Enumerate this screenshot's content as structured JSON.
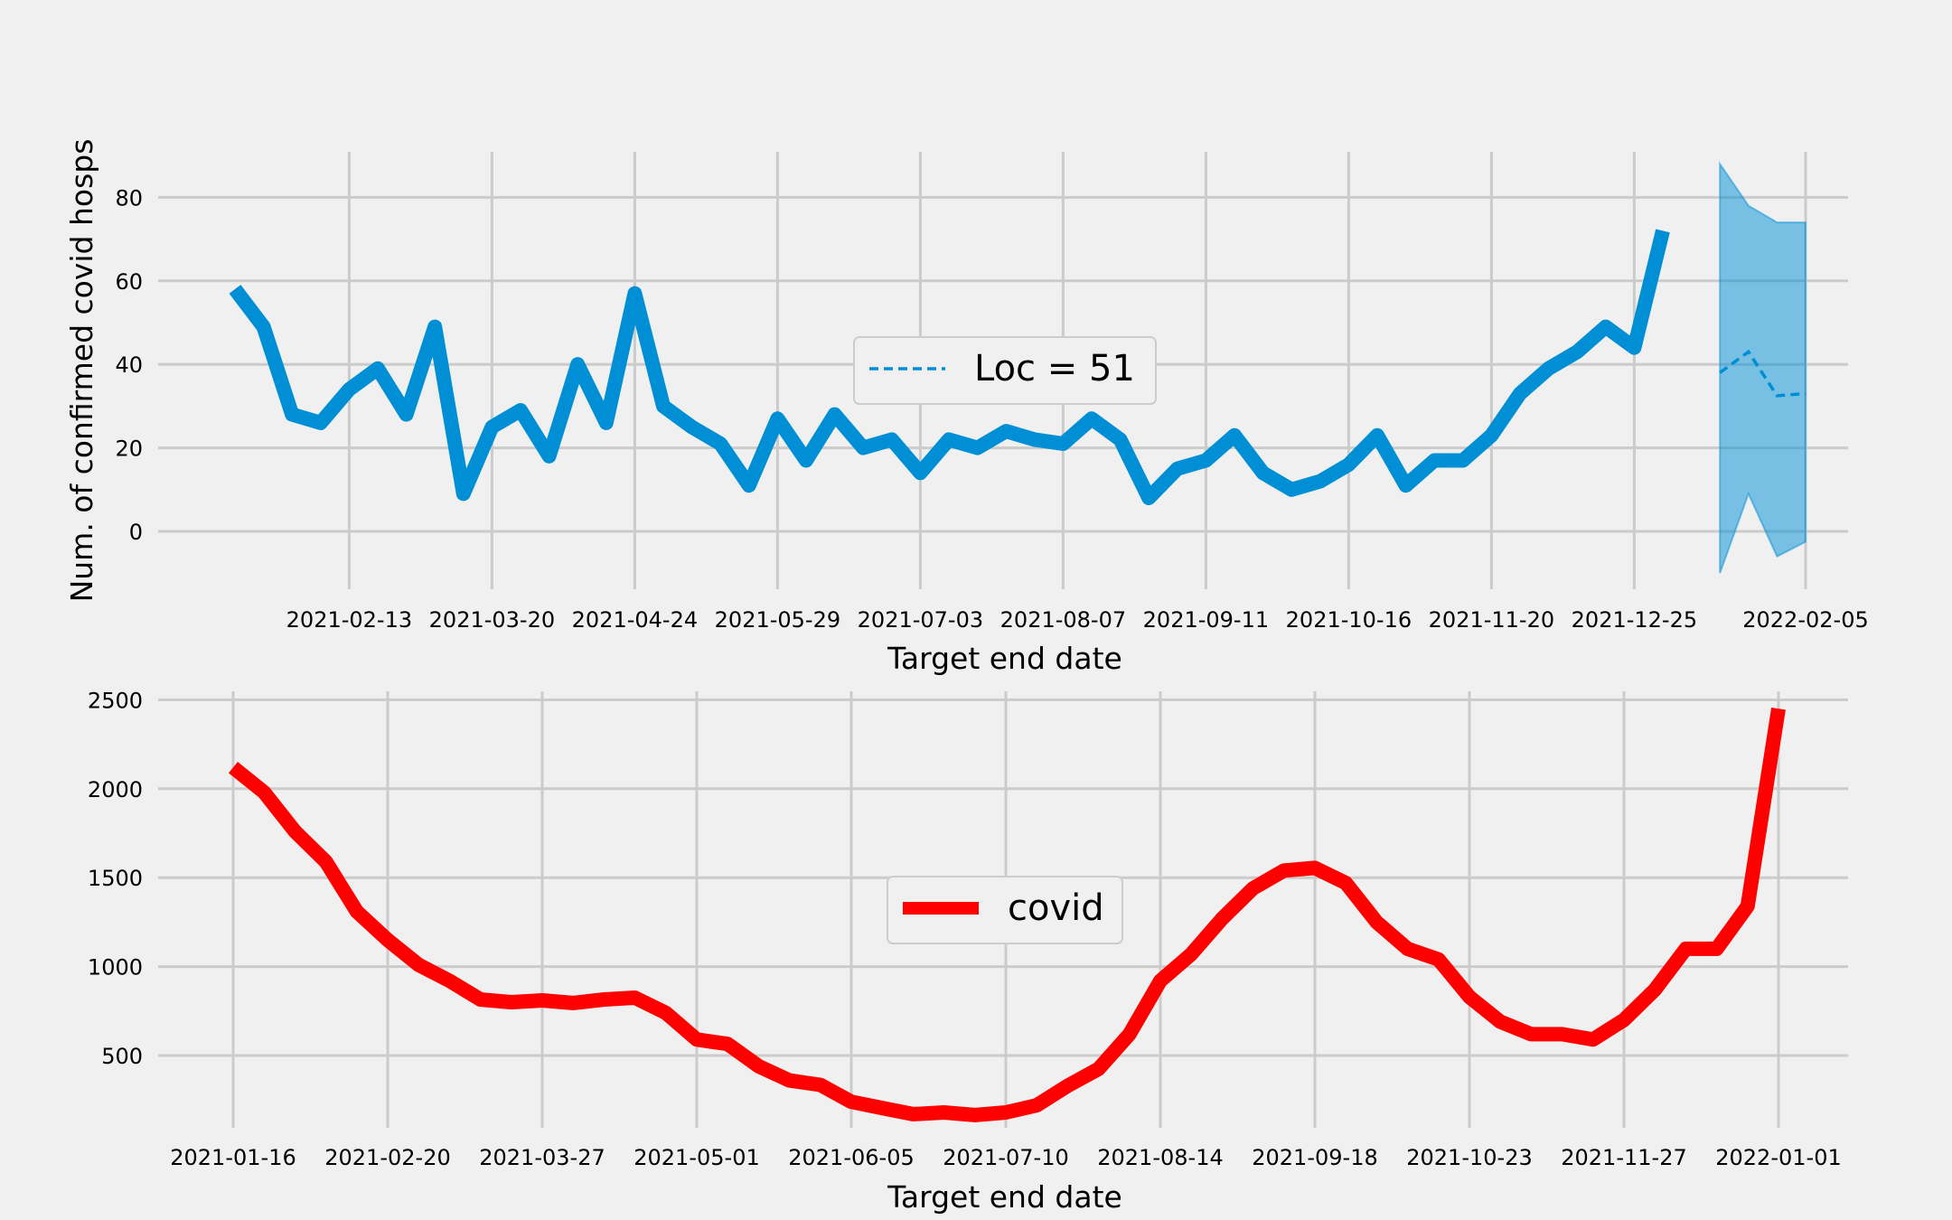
{
  "chart_data": [
    {
      "type": "line",
      "title": "",
      "xlabel": "Target end date",
      "ylabel": "Num. of confirmed covid hosps",
      "ylim": [
        -10,
        92
      ],
      "y_ticks": [
        0,
        20,
        40,
        60,
        80
      ],
      "x_ticks": [
        "2021-02-13",
        "2021-03-20",
        "2021-04-24",
        "2021-05-29",
        "2021-07-03",
        "2021-08-07",
        "2021-09-11",
        "2021-10-16",
        "2021-11-20",
        "2021-12-25",
        "2022-02-05"
      ],
      "grid": true,
      "legend_placement": "center",
      "colors": {
        "observed": "#008fd5",
        "forecast": "#008fd5",
        "band": "#008fd5"
      },
      "series": [
        {
          "name": "",
          "style": "solid",
          "x": [
            "2021-01-16",
            "2021-01-23",
            "2021-01-30",
            "2021-02-06",
            "2021-02-13",
            "2021-02-20",
            "2021-02-27",
            "2021-03-06",
            "2021-03-13",
            "2021-03-20",
            "2021-03-27",
            "2021-04-03",
            "2021-04-10",
            "2021-04-17",
            "2021-04-24",
            "2021-05-01",
            "2021-05-08",
            "2021-05-15",
            "2021-05-22",
            "2021-05-29",
            "2021-06-05",
            "2021-06-12",
            "2021-06-19",
            "2021-06-26",
            "2021-07-03",
            "2021-07-10",
            "2021-07-17",
            "2021-07-24",
            "2021-07-31",
            "2021-08-07",
            "2021-08-14",
            "2021-08-21",
            "2021-08-28",
            "2021-09-04",
            "2021-09-11",
            "2021-09-18",
            "2021-09-25",
            "2021-10-02",
            "2021-10-09",
            "2021-10-16",
            "2021-10-23",
            "2021-10-30",
            "2021-11-06",
            "2021-11-13",
            "2021-11-20",
            "2021-11-27",
            "2021-12-04",
            "2021-12-11",
            "2021-12-18",
            "2021-12-25",
            "2022-01-01"
          ],
          "values": [
            58,
            49,
            28,
            26,
            34,
            39,
            28,
            49,
            9,
            25,
            29,
            18,
            40,
            26,
            57,
            30,
            25,
            21,
            11,
            27,
            17,
            28,
            20,
            22,
            14,
            22,
            20,
            24,
            22,
            21,
            27,
            22,
            8,
            15,
            17,
            23,
            14,
            10,
            12,
            16,
            23,
            11,
            17,
            17,
            23,
            33,
            39,
            43,
            49,
            44,
            72
          ]
        },
        {
          "name": "Loc = 51",
          "style": "dashed",
          "x": [
            "2022-01-15",
            "2022-01-22",
            "2022-01-29",
            "2022-02-05"
          ],
          "values": [
            38,
            43,
            32.5,
            33
          ],
          "lower": [
            -10,
            9,
            -6,
            -2.5
          ],
          "upper": [
            88,
            78,
            74,
            74
          ]
        }
      ]
    },
    {
      "type": "line",
      "title": "",
      "xlabel": "Target end date",
      "ylabel": "",
      "ylim": [
        40,
        2550
      ],
      "y_ticks": [
        500,
        1000,
        1500,
        2000,
        2500
      ],
      "x_ticks": [
        "2021-01-16",
        "2021-02-20",
        "2021-03-27",
        "2021-05-01",
        "2021-06-05",
        "2021-07-10",
        "2021-08-14",
        "2021-09-18",
        "2021-10-23",
        "2021-11-27",
        "2022-01-01"
      ],
      "grid": true,
      "legend_placement": "center",
      "colors": {
        "covid": "#ff0000"
      },
      "series": [
        {
          "name": "covid",
          "x": [
            "2021-01-16",
            "2021-01-23",
            "2021-01-30",
            "2021-02-06",
            "2021-02-13",
            "2021-02-20",
            "2021-02-27",
            "2021-03-06",
            "2021-03-13",
            "2021-03-20",
            "2021-03-27",
            "2021-04-03",
            "2021-04-10",
            "2021-04-17",
            "2021-04-24",
            "2021-05-01",
            "2021-05-08",
            "2021-05-15",
            "2021-05-22",
            "2021-05-29",
            "2021-06-05",
            "2021-06-12",
            "2021-06-19",
            "2021-06-26",
            "2021-07-03",
            "2021-07-10",
            "2021-07-17",
            "2021-07-24",
            "2021-07-31",
            "2021-08-07",
            "2021-08-14",
            "2021-08-21",
            "2021-08-28",
            "2021-09-04",
            "2021-09-11",
            "2021-09-18",
            "2021-09-25",
            "2021-10-02",
            "2021-10-09",
            "2021-10-16",
            "2021-10-23",
            "2021-10-30",
            "2021-11-06",
            "2021-11-13",
            "2021-11-20",
            "2021-11-27",
            "2021-12-04",
            "2021-12-11",
            "2021-12-18",
            "2021-12-25",
            "2022-01-01"
          ],
          "values": [
            2120,
            1980,
            1760,
            1590,
            1310,
            1150,
            1010,
            920,
            815,
            800,
            810,
            795,
            815,
            825,
            740,
            590,
            565,
            440,
            360,
            335,
            240,
            205,
            170,
            180,
            165,
            180,
            220,
            330,
            425,
            620,
            920,
            1070,
            1270,
            1440,
            1540,
            1555,
            1470,
            1250,
            1100,
            1040,
            830,
            690,
            620,
            620,
            590,
            700,
            870,
            1100,
            1100,
            1340,
            2450
          ]
        }
      ]
    }
  ]
}
